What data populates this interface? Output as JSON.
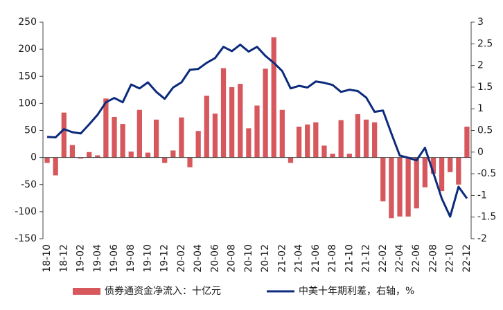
{
  "chart_data": {
    "type": "bar",
    "categories": [
      "18-10",
      null,
      "18-12",
      null,
      "19-02",
      null,
      "19-04",
      null,
      "19-06",
      null,
      "19-08",
      null,
      "19-10",
      null,
      "19-12",
      null,
      "20-02",
      null,
      "20-04",
      null,
      "20-06",
      null,
      "20-08",
      null,
      "20-10",
      null,
      "20-12",
      null,
      "21-02",
      null,
      "21-04",
      null,
      "21-06",
      null,
      "21-08",
      null,
      "21-10",
      null,
      "21-12",
      null,
      "22-02",
      null,
      "22-04",
      null,
      "22-06",
      null,
      "22-08",
      null,
      "22-10",
      null,
      "22-12"
    ],
    "series": [
      {
        "name": "债券通资金净流入：十亿元",
        "type": "bar",
        "color": "#d6585d",
        "values": [
          -10,
          -33,
          83,
          23,
          -2,
          10,
          4,
          109,
          75,
          62,
          11,
          88,
          9,
          70,
          -10,
          13,
          74,
          -18,
          49,
          114,
          81,
          165,
          130,
          136,
          54,
          96,
          164,
          222,
          88,
          -10,
          57,
          61,
          65,
          22,
          7,
          69,
          7,
          80,
          70,
          65,
          -81,
          -112,
          -109,
          -109,
          -94,
          -55,
          -30,
          -62,
          -27,
          -50,
          57
        ]
      },
      {
        "name": "中美十年期利差，右轴，%",
        "type": "line",
        "axis": "y2",
        "color": "#0c2a7c",
        "values": [
          0.35,
          0.34,
          0.53,
          0.46,
          0.43,
          0.64,
          0.86,
          1.15,
          1.25,
          1.15,
          1.56,
          1.47,
          1.61,
          1.39,
          1.23,
          1.49,
          1.61,
          1.9,
          1.92,
          2.06,
          2.17,
          2.43,
          2.33,
          2.48,
          2.32,
          2.43,
          2.22,
          2.06,
          1.87,
          1.47,
          1.53,
          1.49,
          1.63,
          1.6,
          1.55,
          1.39,
          1.44,
          1.41,
          1.26,
          0.93,
          0.96,
          0.43,
          -0.08,
          -0.13,
          -0.19,
          0.1,
          -0.48,
          -1.07,
          -1.49,
          -0.8,
          -1.07
        ]
      }
    ],
    "ylim": [
      -150,
      250
    ],
    "yticks": [
      -150,
      -100,
      -50,
      0,
      50,
      100,
      150,
      200,
      250
    ],
    "y2lim": [
      -2,
      3
    ],
    "y2ticks": [
      -2,
      -1.5,
      -1,
      -0.5,
      0,
      0.5,
      1,
      1.5,
      2,
      2.5,
      3
    ],
    "grid": false
  }
}
